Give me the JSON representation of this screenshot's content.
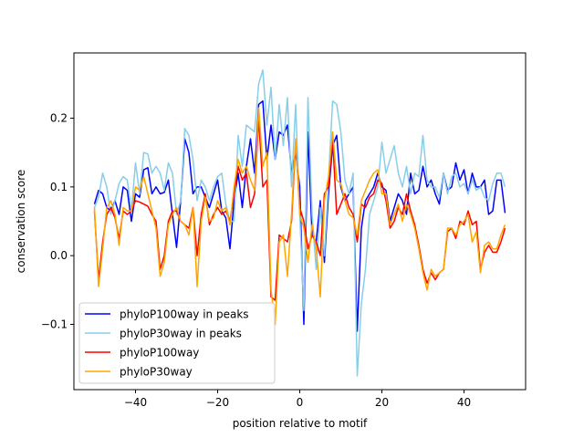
{
  "chart_data": {
    "type": "line",
    "xlabel": "position relative to motif",
    "ylabel": "conservation score",
    "xlim": [
      -55,
      55
    ],
    "ylim": [
      -0.195,
      0.295
    ],
    "xticks": [
      -40,
      -20,
      0,
      20,
      40
    ],
    "xtick_labels": [
      "−40",
      "−20",
      "0",
      "20",
      "40"
    ],
    "yticks": [
      -0.1,
      0.0,
      0.1,
      0.2
    ],
    "ytick_labels": [
      "−0.1",
      "0.0",
      "0.1",
      "0.2"
    ],
    "grid": false,
    "legend_position": "lower-left",
    "x": [
      -50,
      -49,
      -48,
      -47,
      -46,
      -45,
      -44,
      -43,
      -42,
      -41,
      -40,
      -39,
      -38,
      -37,
      -36,
      -35,
      -34,
      -33,
      -32,
      -31,
      -30,
      -29,
      -28,
      -27,
      -26,
      -25,
      -24,
      -23,
      -22,
      -21,
      -20,
      -19,
      -18,
      -17,
      -16,
      -15,
      -14,
      -13,
      -12,
      -11,
      -10,
      -9,
      -8,
      -7,
      -6,
      -5,
      -4,
      -3,
      -2,
      -1,
      0,
      1,
      2,
      3,
      4,
      5,
      6,
      7,
      8,
      9,
      10,
      11,
      12,
      13,
      14,
      15,
      16,
      17,
      18,
      19,
      20,
      21,
      22,
      23,
      24,
      25,
      26,
      27,
      28,
      29,
      30,
      31,
      32,
      33,
      34,
      35,
      36,
      37,
      38,
      39,
      40,
      41,
      42,
      43,
      44,
      45,
      46,
      47,
      48,
      49,
      50
    ],
    "series": [
      {
        "name": "phyloP100way in peaks",
        "color": "#0000ff",
        "values": [
          0.075,
          0.095,
          0.09,
          0.07,
          0.065,
          0.08,
          0.06,
          0.1,
          0.095,
          0.05,
          0.09,
          0.085,
          0.125,
          0.128,
          0.09,
          0.1,
          0.09,
          0.092,
          0.11,
          0.06,
          0.012,
          0.08,
          0.17,
          0.15,
          0.09,
          0.1,
          0.1,
          0.085,
          0.07,
          0.09,
          0.11,
          0.065,
          0.055,
          0.01,
          0.08,
          0.12,
          0.07,
          0.13,
          0.17,
          0.12,
          0.22,
          0.225,
          0.14,
          0.19,
          0.14,
          0.18,
          0.175,
          0.19,
          0.12,
          0.15,
          0.1,
          -0.1,
          0.18,
          0.03,
          0.02,
          0.08,
          -0.01,
          0.09,
          0.16,
          0.175,
          0.1,
          0.08,
          0.09,
          0.1,
          -0.11,
          0.04,
          0.08,
          0.09,
          0.1,
          0.12,
          0.1,
          0.095,
          0.05,
          0.07,
          0.09,
          0.08,
          0.06,
          0.12,
          0.09,
          0.095,
          0.13,
          0.1,
          0.11,
          0.09,
          0.075,
          0.12,
          0.095,
          0.1,
          0.135,
          0.11,
          0.125,
          0.09,
          0.12,
          0.1,
          0.1,
          0.11,
          0.06,
          0.065,
          0.11,
          0.11,
          0.062
        ]
      },
      {
        "name": "phyloP30way in peaks",
        "color": "#87ceeb",
        "values": [
          0.07,
          0.085,
          0.12,
          0.1,
          0.06,
          0.08,
          0.105,
          0.115,
          0.11,
          0.065,
          0.135,
          0.09,
          0.15,
          0.148,
          0.12,
          0.13,
          0.12,
          0.095,
          0.135,
          0.12,
          0.06,
          0.08,
          0.185,
          0.175,
          0.14,
          0.08,
          0.11,
          0.1,
          0.08,
          0.1,
          0.115,
          0.12,
          0.075,
          0.05,
          0.05,
          0.175,
          0.13,
          0.19,
          0.185,
          0.18,
          0.25,
          0.27,
          0.19,
          0.245,
          0.14,
          0.22,
          0.16,
          0.23,
          0.1,
          0.22,
          0.06,
          -0.08,
          0.23,
          0.06,
          -0.02,
          0.07,
          0.0,
          0.11,
          0.225,
          0.22,
          0.18,
          0.11,
          0.09,
          0.12,
          -0.175,
          -0.07,
          -0.02,
          0.06,
          0.08,
          0.1,
          0.165,
          0.12,
          0.14,
          0.16,
          0.12,
          0.1,
          0.13,
          0.09,
          0.12,
          0.115,
          0.175,
          0.11,
          0.1,
          0.1,
          0.085,
          0.12,
          0.09,
          0.115,
          0.12,
          0.1,
          0.105,
          0.09,
          0.11,
          0.095,
          0.1,
          0.085,
          0.08,
          0.105,
          0.12,
          0.12,
          0.1
        ]
      },
      {
        "name": "phyloP100way",
        "color": "#ff0000",
        "values": [
          0.065,
          -0.035,
          0.02,
          0.06,
          0.07,
          0.055,
          0.025,
          0.065,
          0.06,
          0.065,
          0.08,
          0.078,
          0.075,
          0.072,
          0.06,
          0.05,
          -0.02,
          0.0,
          0.05,
          0.065,
          0.065,
          0.05,
          0.045,
          0.04,
          0.07,
          0.0,
          0.06,
          0.09,
          0.045,
          0.06,
          0.07,
          0.06,
          0.065,
          0.05,
          0.09,
          0.13,
          0.11,
          0.12,
          0.07,
          0.09,
          0.2,
          0.1,
          0.11,
          -0.06,
          -0.065,
          0.03,
          0.025,
          0.02,
          0.05,
          0.165,
          0.07,
          0.05,
          0.01,
          0.03,
          0.02,
          0.0,
          0.09,
          0.1,
          0.17,
          0.06,
          0.075,
          0.09,
          0.07,
          0.06,
          0.02,
          0.075,
          0.07,
          0.085,
          0.09,
          0.11,
          0.105,
          0.08,
          0.04,
          0.05,
          0.07,
          0.06,
          0.09,
          0.065,
          0.045,
          0.015,
          -0.02,
          -0.04,
          -0.025,
          -0.035,
          -0.025,
          -0.02,
          0.035,
          0.04,
          0.025,
          0.05,
          0.045,
          0.065,
          0.045,
          0.05,
          -0.02,
          0.005,
          0.015,
          0.005,
          0.005,
          0.02,
          0.04
        ]
      },
      {
        "name": "phyloP30way",
        "color": "#ffa500",
        "values": [
          0.07,
          -0.045,
          0.01,
          0.07,
          0.08,
          0.06,
          0.015,
          0.07,
          0.065,
          0.065,
          0.1,
          0.095,
          0.115,
          0.09,
          0.065,
          0.04,
          -0.03,
          -0.01,
          0.045,
          0.06,
          0.07,
          0.05,
          0.045,
          0.03,
          0.07,
          -0.045,
          0.05,
          0.085,
          0.05,
          0.055,
          0.08,
          0.065,
          0.07,
          0.045,
          0.1,
          0.14,
          0.12,
          0.13,
          0.11,
          0.095,
          0.215,
          0.13,
          0.15,
          -0.05,
          -0.1,
          0.02,
          0.03,
          -0.03,
          0.06,
          0.17,
          0.06,
          0.04,
          -0.01,
          0.045,
          0.01,
          -0.06,
          0.08,
          0.115,
          0.18,
          0.11,
          0.105,
          0.08,
          0.06,
          0.055,
          0.03,
          0.08,
          0.095,
          0.11,
          0.12,
          0.125,
          0.09,
          0.09,
          0.045,
          0.06,
          0.075,
          0.05,
          0.075,
          0.06,
          0.04,
          0.01,
          -0.025,
          -0.05,
          -0.02,
          -0.03,
          -0.025,
          -0.02,
          0.04,
          0.04,
          0.03,
          0.045,
          0.05,
          0.06,
          0.02,
          0.035,
          -0.025,
          0.015,
          0.02,
          0.01,
          0.01,
          0.03,
          0.045
        ]
      }
    ]
  }
}
